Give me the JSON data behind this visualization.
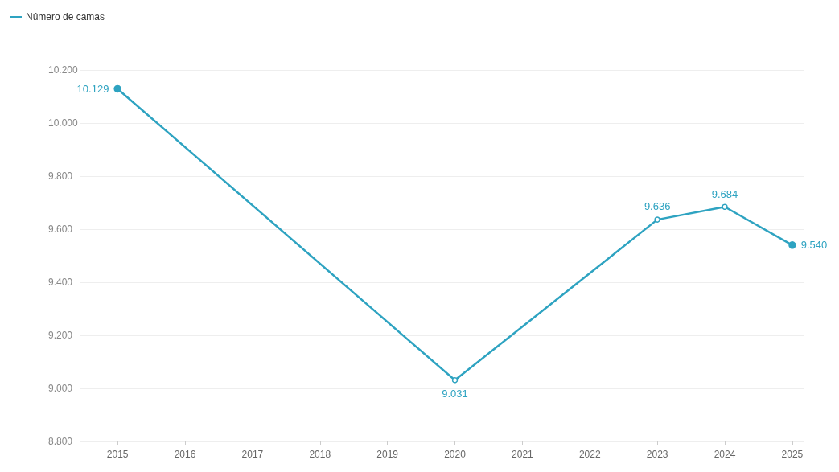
{
  "chart_data": {
    "type": "line",
    "x": [
      2015,
      2020,
      2023,
      2024,
      2025
    ],
    "series": [
      {
        "name": "Número de camas",
        "color": "#2ea3c1",
        "values": [
          10129,
          9031,
          9636,
          9684,
          9540
        ],
        "value_labels": [
          "10.129",
          "9.031",
          "9.636",
          "9.684",
          "9.540"
        ]
      }
    ],
    "xlim": [
      2014.45,
      2025.18
    ],
    "xticks": [
      2015,
      2016,
      2017,
      2018,
      2019,
      2020,
      2021,
      2022,
      2023,
      2024,
      2025
    ],
    "ylim": [
      8800,
      10200
    ],
    "yticks": [
      {
        "value": 8800,
        "label": "8.800"
      },
      {
        "value": 9000,
        "label": "9.000"
      },
      {
        "value": 9200,
        "label": "9.200"
      },
      {
        "value": 9400,
        "label": "9.400"
      },
      {
        "value": 9600,
        "label": "9.600"
      },
      {
        "value": 9800,
        "label": "9.800"
      },
      {
        "value": 10000,
        "label": "10.000"
      },
      {
        "value": 10200,
        "label": "10.200"
      }
    ],
    "grid": "y",
    "legend": "top left",
    "marker": "circle",
    "line_style": "solid"
  }
}
